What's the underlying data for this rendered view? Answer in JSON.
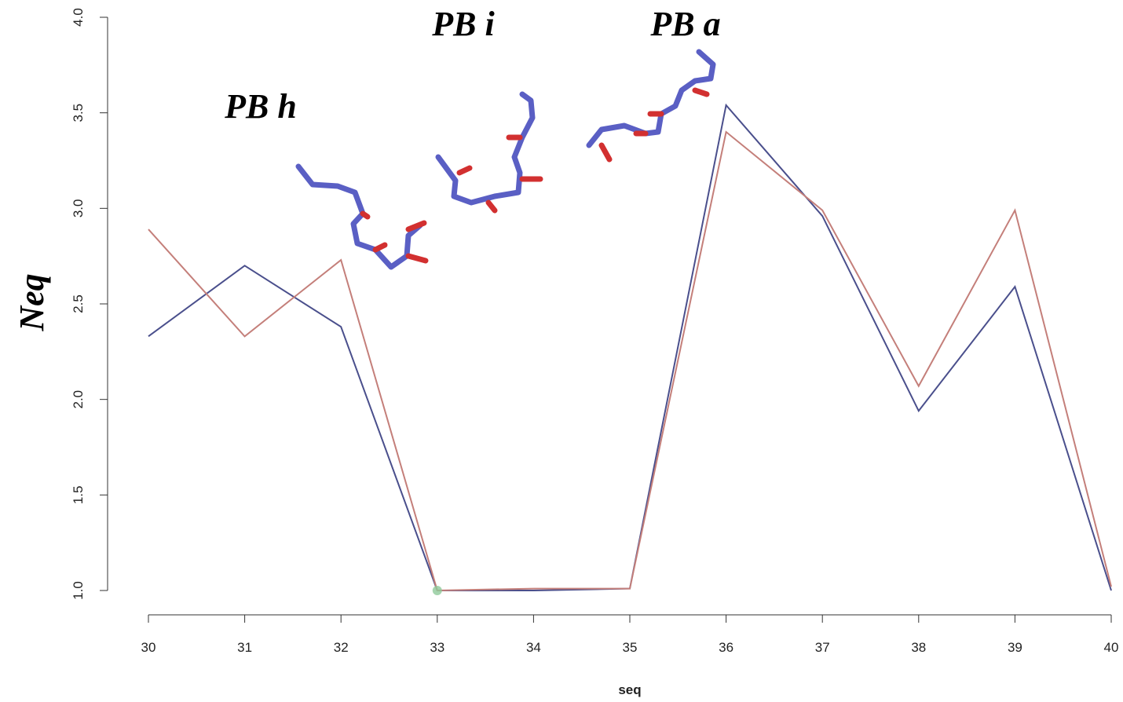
{
  "chart_data": {
    "type": "line",
    "x": [
      30,
      31,
      32,
      33,
      34,
      35,
      36,
      37,
      38,
      39,
      40
    ],
    "series": [
      {
        "name": "blue",
        "color": "#4a4f8c",
        "values": [
          2.33,
          2.7,
          2.38,
          1.0,
          1.0,
          1.01,
          3.54,
          2.96,
          1.94,
          2.59,
          1.0
        ]
      },
      {
        "name": "red",
        "color": "#c47f7a",
        "values": [
          2.89,
          2.33,
          2.73,
          1.0,
          1.01,
          1.01,
          3.4,
          2.99,
          2.07,
          2.99,
          1.02
        ]
      }
    ],
    "xlim": [
      30,
      40
    ],
    "xticks": [
      30,
      31,
      32,
      33,
      34,
      35,
      36,
      37,
      38,
      39,
      40
    ],
    "ylim": [
      1,
      4
    ],
    "yticks": [
      {
        "value": 1,
        "label": "1.0"
      },
      {
        "value": 1.5,
        "label": "1.5"
      },
      {
        "value": 2,
        "label": "2.0"
      },
      {
        "value": 2.5,
        "label": "2.5"
      },
      {
        "value": 3,
        "label": "3.0"
      },
      {
        "value": 3.5,
        "label": "3.5"
      },
      {
        "value": 4,
        "label": "4.0"
      }
    ],
    "x_label": "seq",
    "y_label": "Neq",
    "highlight": {
      "x": 33,
      "y": 1.0,
      "color": "#8fc99a"
    },
    "annotations": [
      "PB h",
      "PB i",
      "PB a"
    ]
  }
}
